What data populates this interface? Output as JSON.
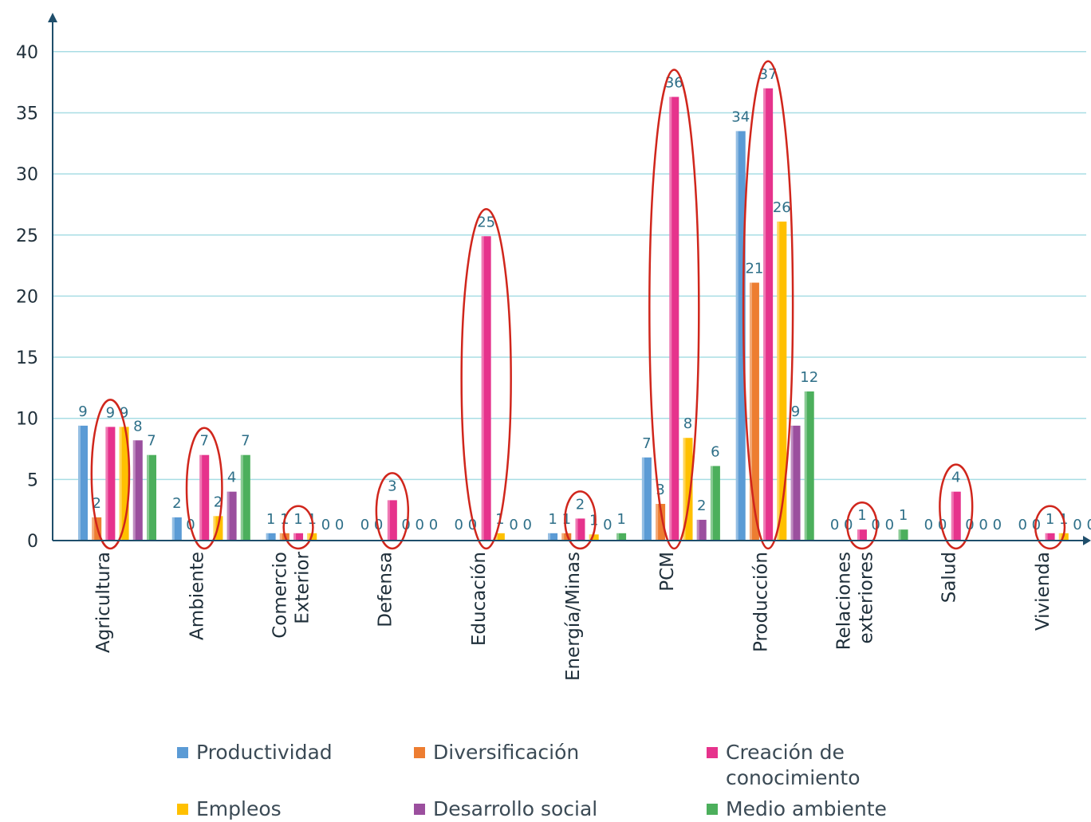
{
  "chart_data": {
    "type": "bar",
    "categories": [
      "Agricultura",
      "Ambiente",
      "Comercio\nExterior",
      "Defensa",
      "Educación",
      "Energía/Minas",
      "PCM",
      "Producción",
      "Relaciones\nexteriores",
      "Salud",
      "Vivienda"
    ],
    "series": [
      {
        "name": "Productividad",
        "color": "#5b9bd5",
        "values": [
          9.4,
          1.9,
          0.6,
          0,
          0,
          0.6,
          6.8,
          33.5,
          0,
          0,
          0
        ],
        "labels": [
          "9",
          "2",
          "1",
          "0",
          "0",
          "1",
          "7",
          "34",
          "0",
          "0",
          "0"
        ]
      },
      {
        "name": "Diversificación",
        "color": "#ed7d31",
        "values": [
          1.9,
          0,
          0.6,
          0,
          0,
          0.6,
          3.0,
          21.1,
          0,
          0,
          0
        ],
        "labels": [
          "2",
          "0",
          "1",
          "0",
          "0",
          "1",
          "3",
          "21",
          "0",
          "0",
          "0"
        ]
      },
      {
        "name": "Creación de\nconocimiento",
        "color": "#e6338c",
        "values": [
          9.3,
          7.0,
          0.6,
          3.3,
          24.9,
          1.8,
          36.3,
          37.0,
          0.9,
          4.0,
          0.6
        ],
        "labels": [
          "9",
          "7",
          "1",
          "3",
          "25",
          "2",
          "36",
          "37",
          "1",
          "4",
          "1"
        ]
      },
      {
        "name": "Empleos",
        "color": "#ffc000",
        "values": [
          9.3,
          2.0,
          0.6,
          0,
          0.6,
          0.5,
          8.4,
          26.1,
          0,
          0,
          0.6
        ],
        "labels": [
          "9",
          "2",
          "1",
          "0",
          "1",
          "1",
          "8",
          "26",
          "0",
          "0",
          "1"
        ]
      },
      {
        "name": "Desarrollo social",
        "color": "#9b4f9e",
        "values": [
          8.2,
          4.0,
          0,
          0,
          0,
          0,
          1.7,
          9.4,
          0,
          0,
          0
        ],
        "labels": [
          "8",
          "4",
          "0",
          "0",
          "0",
          "0",
          "2",
          "9",
          "0",
          "0",
          "0"
        ]
      },
      {
        "name": "Medio ambiente",
        "color": "#4caf5c",
        "values": [
          7.0,
          7.0,
          0,
          0,
          0,
          0.6,
          6.1,
          12.2,
          0.9,
          0,
          0
        ],
        "labels": [
          "7",
          "7",
          "0",
          "0",
          "0",
          "1",
          "6",
          "12",
          "1",
          "0",
          "0"
        ]
      }
    ],
    "ylim": [
      0,
      43
    ],
    "yticks": [
      0,
      5,
      10,
      15,
      20,
      25,
      30,
      35,
      40
    ],
    "grid": true,
    "legend_position": "bottom",
    "highlighted_series": "Creación de\nconocimiento",
    "colors": {
      "axis": "#1f4e6b",
      "grid": "#a8dde4",
      "highlight": "#d0261c",
      "data_label": "#2e6f88"
    }
  }
}
